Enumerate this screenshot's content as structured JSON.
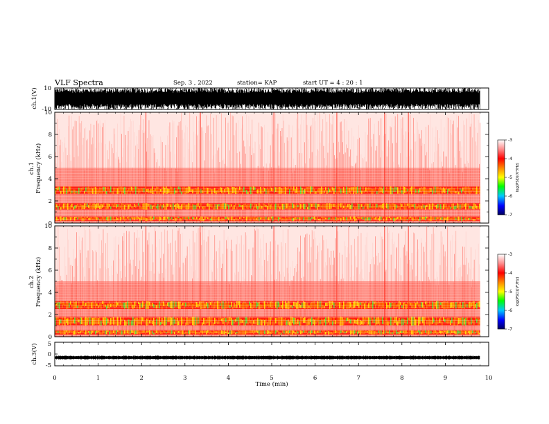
{
  "header": {
    "title": "VLF Spectra",
    "date": "Sep. 3 , 2022",
    "station": "station= KAP",
    "start": "start  UT  =   4 : 20 : 1"
  },
  "chart_data": [
    {
      "id": "ch1-waveform",
      "type": "line",
      "ylabel": "ch.1(V)",
      "ylim": [
        -10,
        10
      ],
      "ytick_labels": [
        "10",
        "-10"
      ],
      "xlim": [
        0,
        10
      ],
      "description_values": {
        "amplitude_range_V": [
          -10,
          10
        ]
      }
    },
    {
      "id": "ch1-spectrogram",
      "type": "heatmap",
      "ylabel": "ch.1\nFrequency  (kHz)",
      "ylim": [
        0,
        10
      ],
      "ytick_labels": [
        "0",
        "2",
        "4",
        "6",
        "8",
        "10"
      ],
      "xlim": [
        0,
        10
      ],
      "colorbar": {
        "label": "log(PSD)(V²/Hz)",
        "range": [
          -7,
          -3
        ],
        "tick_labels": [
          "-3",
          "-4",
          "-5",
          "-6",
          "-7"
        ]
      },
      "bands_kHz": [
        [
          0.2,
          0.6
        ],
        [
          1.2,
          1.8
        ],
        [
          2.6,
          3.3
        ]
      ]
    },
    {
      "id": "ch2-spectrogram",
      "type": "heatmap",
      "ylabel": "ch.2\nFrequency  (kHz)",
      "ylim": [
        0,
        10
      ],
      "ytick_labels": [
        "0",
        "2",
        "4",
        "6",
        "8",
        "10"
      ],
      "xlim": [
        0,
        10
      ],
      "colorbar": {
        "label": "log(PSD)(V²/Hz)",
        "range": [
          -7,
          -3
        ],
        "tick_labels": [
          "-3",
          "-4",
          "-5",
          "-6",
          "-7"
        ]
      },
      "bands_kHz": [
        [
          0.2,
          0.6
        ],
        [
          1.0,
          1.8
        ],
        [
          2.5,
          3.2
        ]
      ]
    },
    {
      "id": "ch3-waveform",
      "type": "line",
      "ylabel": "ch.3(V)",
      "ylim": [
        -5,
        5
      ],
      "ytick_labels": [
        "5",
        "0",
        "-5"
      ],
      "xlim": [
        0,
        10
      ],
      "baseline_V": -1.5
    }
  ],
  "xaxis": {
    "label": "Time  (min)",
    "tick_labels": [
      "0",
      "1",
      "2",
      "3",
      "4",
      "5",
      "6",
      "7",
      "8",
      "9",
      "10"
    ],
    "xlim": [
      0,
      10
    ],
    "data_end_min": 9.8
  },
  "colors": {
    "red": "#ff2a1a",
    "pink": "#ffb0a8",
    "orange": "#ff8000",
    "yellow": "#ffff00",
    "green": "#40ff40"
  }
}
